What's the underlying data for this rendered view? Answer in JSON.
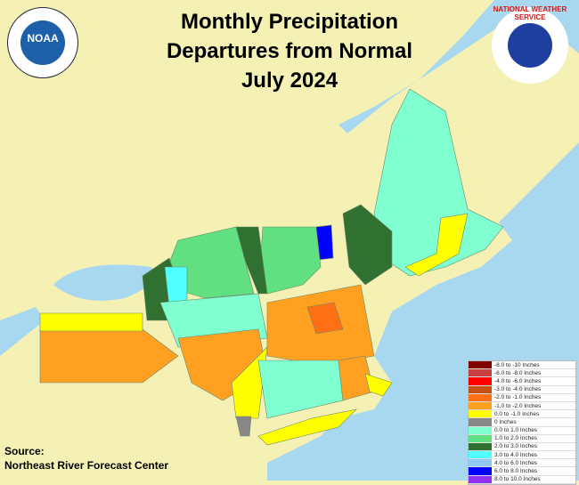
{
  "title": {
    "line1": "Monthly Precipitation",
    "line2": "Departures from Normal",
    "line3": "July 2024"
  },
  "logos": {
    "noaa": "NOAA",
    "nws": "NATIONAL WEATHER SERVICE"
  },
  "legend": [
    {
      "label": "-8.0 to -10 Inches",
      "color": "#800000"
    },
    {
      "label": "-6.0 to -8.0 Inches",
      "color": "#c84040"
    },
    {
      "label": "-4.0 to -6.0 Inches",
      "color": "#ff0000"
    },
    {
      "label": "-3.0 to -4.0 Inches",
      "color": "#c85014"
    },
    {
      "label": "-2.0 to -1.0 Inches",
      "color": "#ff7014"
    },
    {
      "label": "-1.0 to -2.0 Inches",
      "color": "#ffa020"
    },
    {
      "label": "0.0 to -1.0 Inches",
      "color": "#ffff00"
    },
    {
      "label": "0 Inches",
      "color": "#888888"
    },
    {
      "label": "0.0 to 1.0 Inches",
      "color": "#80ffd0"
    },
    {
      "label": "1.0 to 2.0 Inches",
      "color": "#60e080"
    },
    {
      "label": "2.0 to 3.0 Inches",
      "color": "#307030"
    },
    {
      "label": "3.0 to 4.0 Inches",
      "color": "#50ffff"
    },
    {
      "label": "4.0 to 6.0 Inches",
      "color": "#90c8f8"
    },
    {
      "label": "6.0 to 8.0 Inches",
      "color": "#0000ff"
    },
    {
      "label": "8.0 to 10.0 Inches",
      "color": "#9030f0"
    }
  ],
  "source": {
    "label": "Source:",
    "name": "Northeast River Forecast Center"
  },
  "colors": {
    "water": "#a8d8f0",
    "land": "#f5f0b4"
  }
}
